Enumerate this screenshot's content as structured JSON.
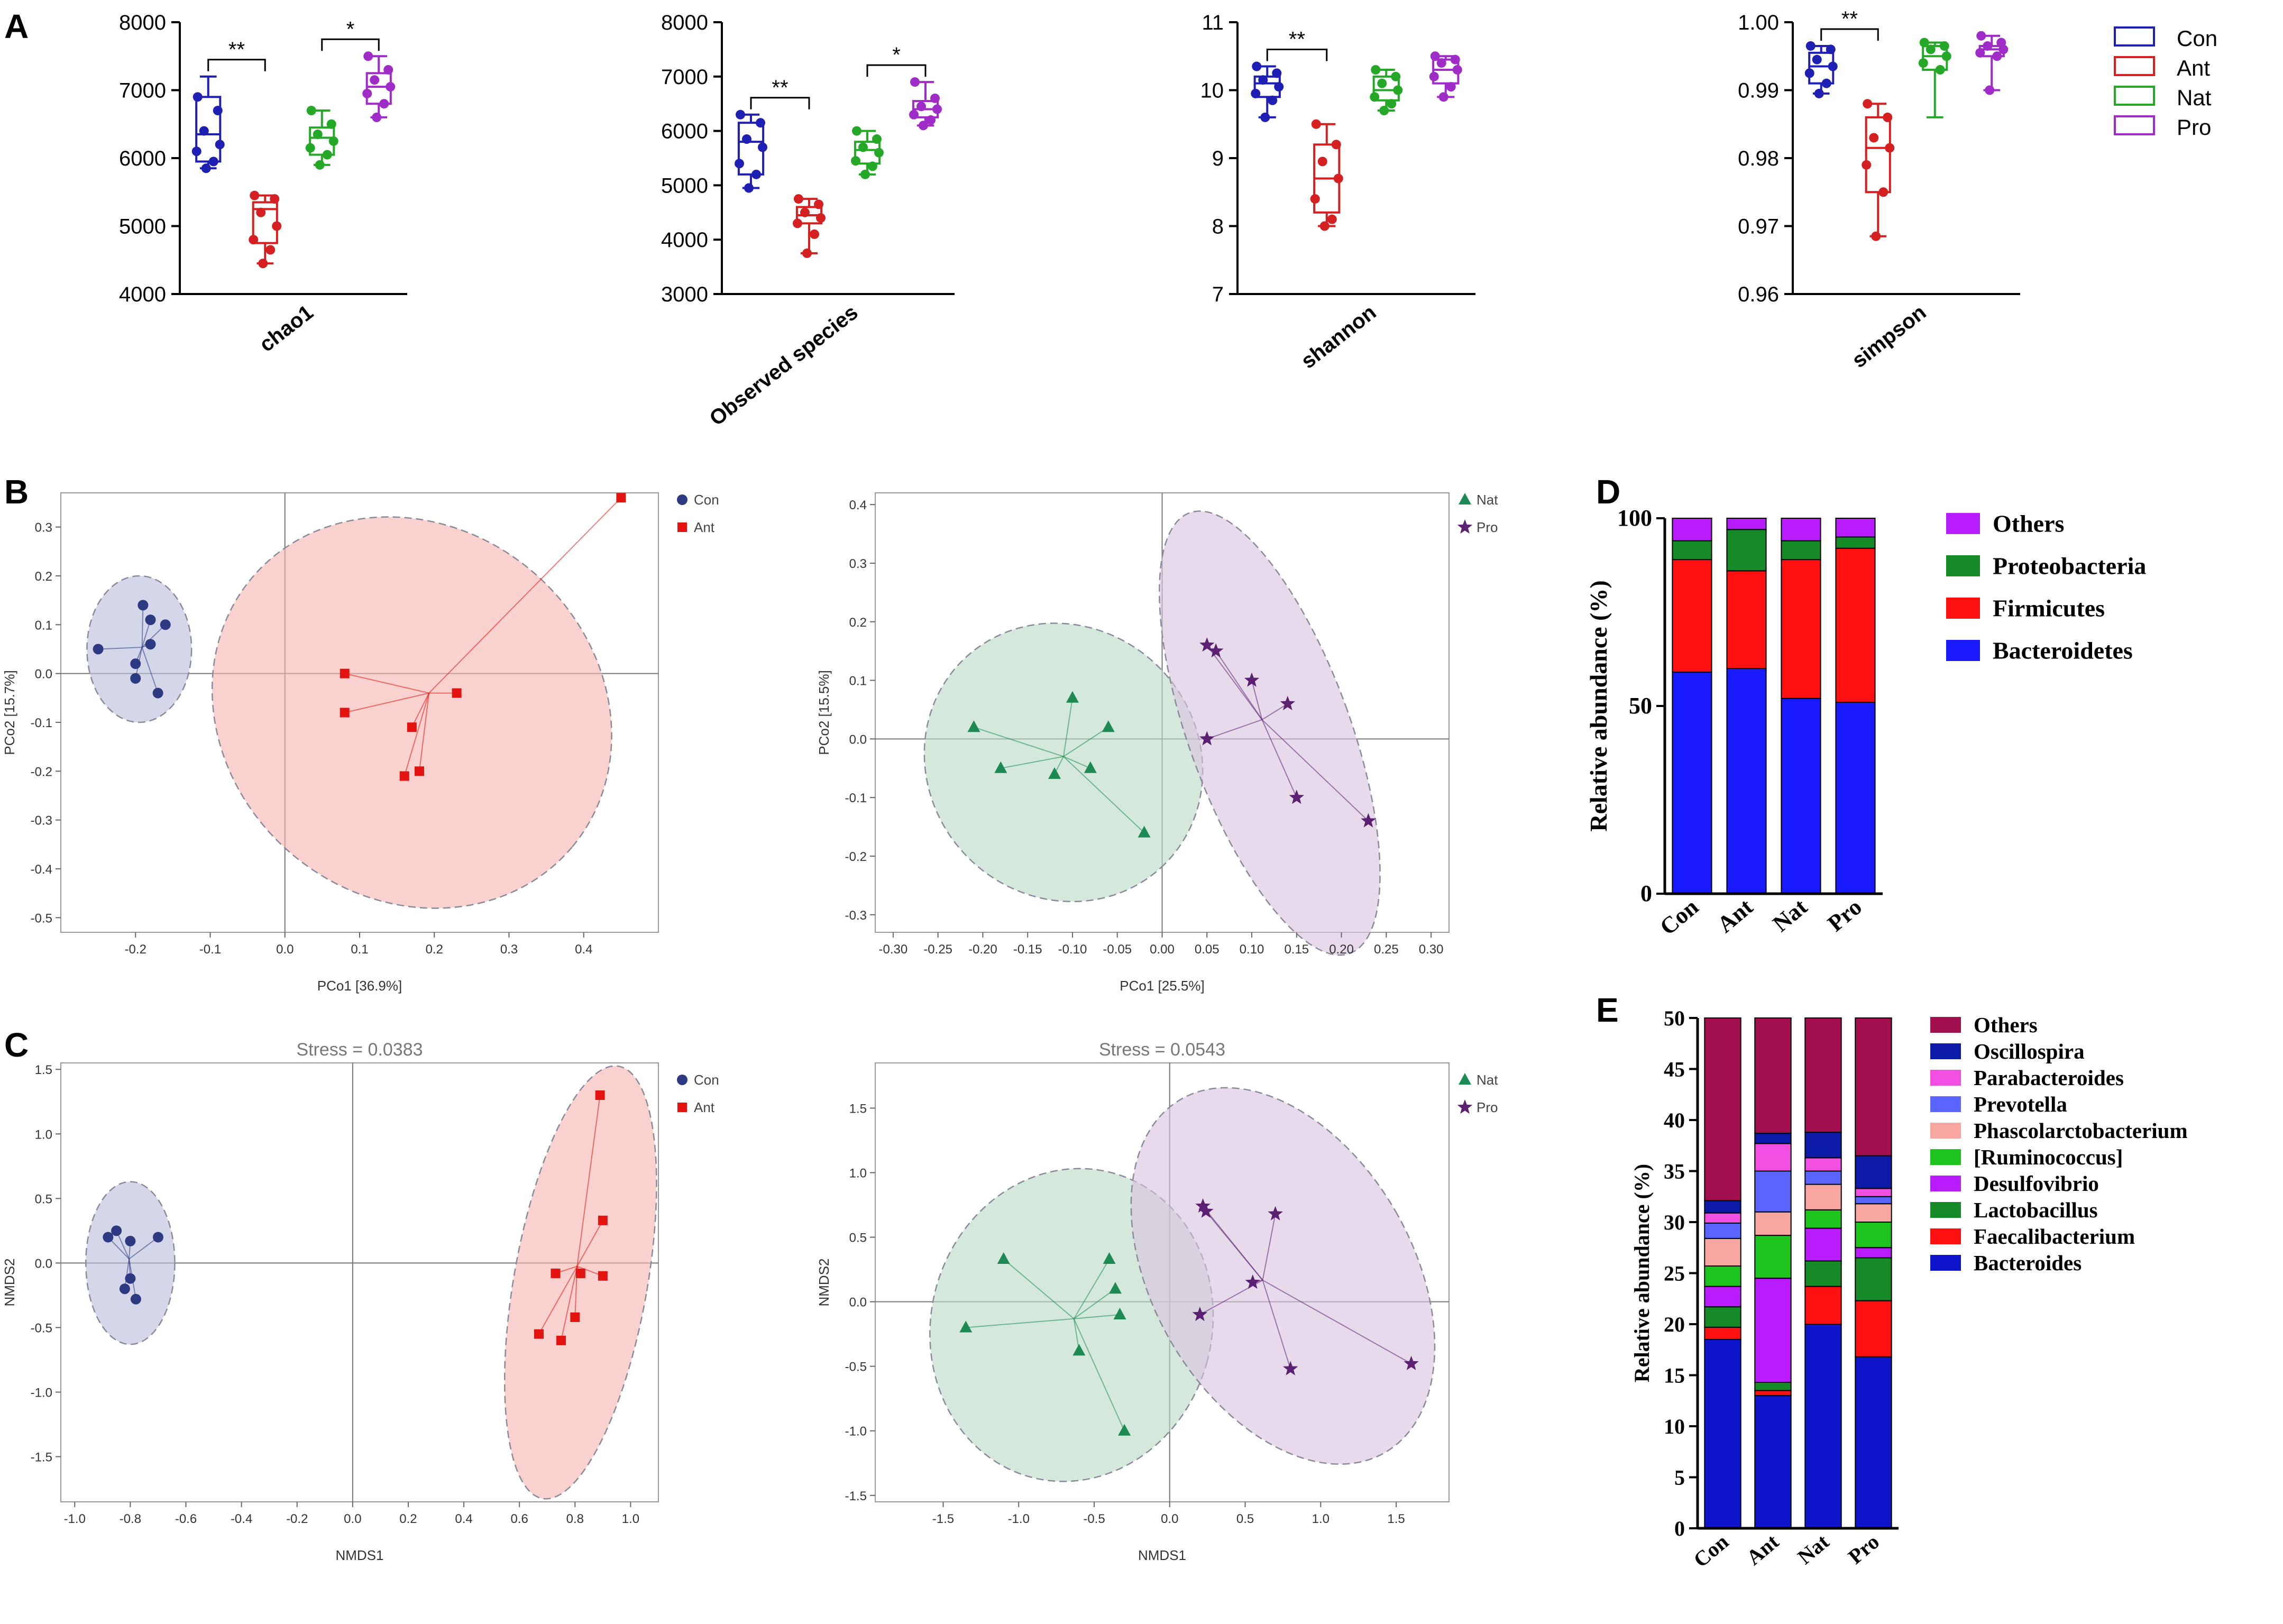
{
  "colors": {
    "con": "#1f1fb4",
    "ant": "#d42020",
    "nat": "#25a828",
    "pro": "#a02cc8",
    "con_ell": "#b9bfdc",
    "ant_ell": "#f6b5b0",
    "nat_ell": "#b9dcc6",
    "pro_ell": "#d8c3dd",
    "con_pt": "#2d3a82",
    "ant_pt": "#e3140f",
    "nat_pt": "#1c8a52",
    "pro_pt": "#5a2071"
  },
  "panel_labels": {
    "A": "A",
    "B": "B",
    "C": "C",
    "D": "D",
    "E": "E"
  },
  "legend_A": {
    "items": [
      "Con",
      "Ant",
      "Nat",
      "Pro"
    ]
  },
  "chart_data": [
    {
      "panel": "A",
      "type": "box",
      "xlabel": "chao1",
      "ylim": [
        4000,
        8000
      ],
      "yticks": [
        "4000",
        "5000",
        "6000",
        "7000",
        "8000"
      ],
      "groups": [
        {
          "name": "Con",
          "min": 5850,
          "q1": 5950,
          "median": 6350,
          "q3": 6900,
          "max": 7200,
          "points": [
            6900,
            6700,
            6400,
            6200,
            6100,
            5950,
            5850
          ]
        },
        {
          "name": "Ant",
          "min": 4450,
          "q1": 4750,
          "median": 5250,
          "q3": 5350,
          "max": 5450,
          "points": [
            5450,
            5400,
            5200,
            5000,
            4800,
            4650,
            4450
          ]
        },
        {
          "name": "Nat",
          "min": 5900,
          "q1": 6050,
          "median": 6300,
          "q3": 6450,
          "max": 6700,
          "points": [
            6700,
            6500,
            6350,
            6250,
            6150,
            6050,
            5900
          ]
        },
        {
          "name": "Pro",
          "min": 6600,
          "q1": 6800,
          "median": 7050,
          "q3": 7250,
          "max": 7500,
          "points": [
            7500,
            7300,
            7150,
            7050,
            6950,
            6800,
            6600
          ]
        }
      ],
      "significance": [
        {
          "pair": [
            0,
            1
          ],
          "label": "**"
        },
        {
          "pair": [
            2,
            3
          ],
          "label": "*"
        }
      ]
    },
    {
      "panel": "A",
      "type": "box",
      "xlabel": "Observed species",
      "ylim": [
        3000,
        8000
      ],
      "yticks": [
        "3000",
        "4000",
        "5000",
        "6000",
        "7000",
        "8000"
      ],
      "groups": [
        {
          "name": "Con",
          "min": 4950,
          "q1": 5200,
          "median": 5800,
          "q3": 6150,
          "max": 6300,
          "points": [
            6300,
            6150,
            5850,
            5700,
            5400,
            5200,
            4950
          ]
        },
        {
          "name": "Ant",
          "min": 3750,
          "q1": 4300,
          "median": 4450,
          "q3": 4600,
          "max": 4750,
          "points": [
            4750,
            4650,
            4500,
            4400,
            4300,
            4100,
            3750
          ]
        },
        {
          "name": "Nat",
          "min": 5200,
          "q1": 5400,
          "median": 5650,
          "q3": 5800,
          "max": 6000,
          "points": [
            6000,
            5850,
            5700,
            5600,
            5450,
            5350,
            5200
          ]
        },
        {
          "name": "Pro",
          "min": 6100,
          "q1": 6250,
          "median": 6400,
          "q3": 6550,
          "max": 6900,
          "points": [
            6900,
            6600,
            6450,
            6400,
            6300,
            6200,
            6100
          ]
        }
      ],
      "significance": [
        {
          "pair": [
            0,
            1
          ],
          "label": "**"
        },
        {
          "pair": [
            2,
            3
          ],
          "label": "*"
        }
      ]
    },
    {
      "panel": "A",
      "type": "box",
      "xlabel": "shannon",
      "ylim": [
        7,
        11
      ],
      "yticks": [
        "7",
        "8",
        "9",
        "10",
        "11"
      ],
      "groups": [
        {
          "name": "Con",
          "min": 9.6,
          "q1": 9.9,
          "median": 10.1,
          "q3": 10.2,
          "max": 10.35,
          "points": [
            10.35,
            10.25,
            10.15,
            10.05,
            9.95,
            9.85,
            9.6
          ]
        },
        {
          "name": "Ant",
          "min": 8.0,
          "q1": 8.2,
          "median": 8.7,
          "q3": 9.2,
          "max": 9.5,
          "points": [
            9.5,
            9.2,
            8.95,
            8.7,
            8.4,
            8.1,
            8.0
          ]
        },
        {
          "name": "Nat",
          "min": 9.7,
          "q1": 9.85,
          "median": 10.0,
          "q3": 10.2,
          "max": 10.3,
          "points": [
            10.3,
            10.2,
            10.1,
            10.0,
            9.9,
            9.8,
            9.7
          ]
        },
        {
          "name": "Pro",
          "min": 9.9,
          "q1": 10.1,
          "median": 10.3,
          "q3": 10.45,
          "max": 10.5,
          "points": [
            10.5,
            10.45,
            10.4,
            10.3,
            10.2,
            10.05,
            9.9
          ]
        }
      ],
      "significance": [
        {
          "pair": [
            0,
            1
          ],
          "label": "**"
        }
      ]
    },
    {
      "panel": "A",
      "type": "box",
      "xlabel": "simpson",
      "ylim": [
        0.96,
        1.0
      ],
      "yticks": [
        "0.96",
        "0.97",
        "0.98",
        "0.99",
        "1.00"
      ],
      "groups": [
        {
          "name": "Con",
          "min": 0.9895,
          "q1": 0.991,
          "median": 0.9935,
          "q3": 0.9955,
          "max": 0.9965,
          "points": [
            0.9965,
            0.996,
            0.9945,
            0.9935,
            0.9925,
            0.991,
            0.9895
          ]
        },
        {
          "name": "Ant",
          "min": 0.9685,
          "q1": 0.975,
          "median": 0.9815,
          "q3": 0.986,
          "max": 0.988,
          "points": [
            0.988,
            0.986,
            0.983,
            0.9815,
            0.979,
            0.975,
            0.9685
          ]
        },
        {
          "name": "Nat",
          "min": 0.986,
          "q1": 0.993,
          "median": 0.995,
          "q3": 0.9965,
          "max": 0.997,
          "points": [
            0.997,
            0.9965,
            0.996,
            0.995,
            0.994,
            0.993
          ]
        },
        {
          "name": "Pro",
          "min": 0.99,
          "q1": 0.995,
          "median": 0.996,
          "q3": 0.9965,
          "max": 0.998,
          "points": [
            0.998,
            0.997,
            0.9965,
            0.996,
            0.9955,
            0.995,
            0.99
          ]
        }
      ],
      "significance": [
        {
          "pair": [
            0,
            1
          ],
          "label": "**"
        }
      ]
    },
    {
      "panel": "B",
      "type": "scatter",
      "subtype": "PCoA",
      "xlabel": "PCo1 [36.9%]",
      "ylabel": "PCo2 [15.7%]",
      "xlim": [
        -0.3,
        0.5
      ],
      "ylim": [
        -0.53,
        0.37
      ],
      "xticks": [
        "-0.2",
        "-0.1",
        "0.0",
        "0.1",
        "0.2",
        "0.3",
        "0.4"
      ],
      "yticks": [
        "-0.5",
        "-0.4",
        "-0.3",
        "-0.2",
        "-0.1",
        "0.0",
        "0.1",
        "0.2",
        "0.3"
      ],
      "legend": [
        "Con",
        "Ant"
      ],
      "series": [
        {
          "name": "Con",
          "marker": "circle",
          "x": [
            -0.25,
            -0.19,
            -0.18,
            -0.2,
            -0.2,
            -0.17,
            -0.16,
            -0.18
          ],
          "y": [
            0.05,
            0.14,
            0.06,
            0.02,
            -0.01,
            -0.04,
            0.1,
            0.11
          ]
        },
        {
          "name": "Ant",
          "marker": "square",
          "x": [
            0.08,
            0.08,
            0.17,
            0.23,
            0.16,
            0.18,
            0.45
          ],
          "y": [
            0.0,
            -0.08,
            -0.11,
            -0.04,
            -0.21,
            -0.2,
            0.36
          ]
        }
      ]
    },
    {
      "panel": "B",
      "type": "scatter",
      "subtype": "PCoA",
      "xlabel": "PCo1 [25.5%]",
      "ylabel": "PCo2 [15.5%]",
      "xlim": [
        -0.32,
        0.32
      ],
      "ylim": [
        -0.33,
        0.42
      ],
      "xticks": [
        "-0.30",
        "-0.25",
        "-0.20",
        "-0.15",
        "-0.10",
        "-0.05",
        "0.00",
        "0.05",
        "0.10",
        "0.15",
        "0.20",
        "0.25",
        "0.30"
      ],
      "yticks": [
        "-0.3",
        "-0.2",
        "-0.1",
        "0.0",
        "0.1",
        "0.2",
        "0.3",
        "0.4"
      ],
      "legend": [
        "Nat",
        "Pro"
      ],
      "series": [
        {
          "name": "Nat",
          "marker": "triangle",
          "x": [
            -0.21,
            -0.18,
            -0.12,
            -0.1,
            -0.08,
            -0.06,
            -0.02
          ],
          "y": [
            0.02,
            -0.05,
            -0.06,
            0.07,
            -0.05,
            0.02,
            -0.16
          ]
        },
        {
          "name": "Pro",
          "marker": "star",
          "x": [
            0.05,
            0.06,
            0.05,
            0.1,
            0.14,
            0.15,
            0.23
          ],
          "y": [
            0.16,
            0.15,
            0.0,
            0.1,
            0.06,
            -0.1,
            -0.14
          ]
        }
      ]
    },
    {
      "panel": "C",
      "type": "scatter",
      "subtype": "NMDS",
      "stress": "Stress = 0.0383",
      "xlabel": "NMDS1",
      "ylabel": "NMDS2",
      "xlim": [
        -1.05,
        1.1
      ],
      "ylim": [
        -1.85,
        1.55
      ],
      "xticks": [
        "-1.0",
        "-0.8",
        "-0.6",
        "-0.4",
        "-0.2",
        "0.0",
        "0.2",
        "0.4",
        "0.6",
        "0.8",
        "1.0"
      ],
      "yticks": [
        "-1.5",
        "-1.0",
        "-0.5",
        "0.0",
        "0.5",
        "1.0",
        "1.5"
      ],
      "legend": [
        "Con",
        "Ant"
      ],
      "series": [
        {
          "name": "Con",
          "marker": "circle",
          "x": [
            -0.88,
            -0.85,
            -0.8,
            -0.8,
            -0.78,
            -0.7,
            -0.82
          ],
          "y": [
            0.2,
            0.25,
            0.17,
            -0.12,
            -0.28,
            0.2,
            -0.2
          ]
        },
        {
          "name": "Ant",
          "marker": "square",
          "x": [
            0.67,
            0.75,
            0.8,
            0.82,
            0.73,
            0.9,
            0.9,
            0.89
          ],
          "y": [
            -0.55,
            -0.6,
            -0.42,
            -0.08,
            -0.08,
            -0.1,
            0.33,
            1.3
          ]
        }
      ]
    },
    {
      "panel": "C",
      "type": "scatter",
      "subtype": "NMDS",
      "stress": "Stress = 0.0543",
      "xlabel": "NMDS1",
      "ylabel": "NMDS2",
      "xlim": [
        -1.95,
        1.85
      ],
      "ylim": [
        -1.55,
        1.85
      ],
      "xticks": [
        "-1.5",
        "-1.0",
        "-0.5",
        "0.0",
        "0.5",
        "1.0",
        "1.5"
      ],
      "yticks": [
        "-1.5",
        "-1.0",
        "-0.5",
        "0.0",
        "0.5",
        "1.0",
        "1.5"
      ],
      "legend": [
        "Nat",
        "Pro"
      ],
      "series": [
        {
          "name": "Nat",
          "marker": "triangle",
          "x": [
            -1.35,
            -1.1,
            -0.6,
            -0.4,
            -0.36,
            -0.33,
            -0.3
          ],
          "y": [
            -0.2,
            0.33,
            -0.38,
            0.33,
            0.1,
            -0.1,
            -1.0
          ]
        },
        {
          "name": "Pro",
          "marker": "star",
          "x": [
            0.22,
            0.24,
            0.2,
            0.55,
            0.7,
            0.8,
            1.6
          ],
          "y": [
            0.74,
            0.7,
            -0.1,
            0.15,
            0.68,
            -0.52,
            -0.48
          ]
        }
      ]
    },
    {
      "panel": "D",
      "type": "bar",
      "stacked": true,
      "categories": [
        "Con",
        "Ant",
        "Nat",
        "Pro"
      ],
      "ylabel": "Relative abundance (%)",
      "ylim": [
        0,
        100
      ],
      "yticks": [
        "0",
        "50",
        "100"
      ],
      "series": [
        {
          "name": "Bacteroidetes",
          "color": "#1a1aff",
          "values": [
            59,
            60,
            52,
            51
          ]
        },
        {
          "name": "Firmicutes",
          "color": "#ff1010",
          "values": [
            30,
            26,
            37,
            41
          ]
        },
        {
          "name": "Proteobacteria",
          "color": "#168a26",
          "values": [
            5,
            11,
            5,
            3
          ]
        },
        {
          "name": "Others",
          "color": "#b81cff",
          "values": [
            6,
            3,
            6,
            5
          ]
        }
      ],
      "legend": [
        "Others",
        "Proteobacteria",
        "Firmicutes",
        "Bacteroidetes"
      ]
    },
    {
      "panel": "E",
      "type": "bar",
      "stacked": true,
      "categories": [
        "Con",
        "Ant",
        "Nat",
        "Pro"
      ],
      "ylabel": "Relative abundance (%)",
      "ylim": [
        0,
        50
      ],
      "yticks": [
        "0",
        "5",
        "10",
        "15",
        "20",
        "25",
        "30",
        "35",
        "40",
        "45",
        "50"
      ],
      "series": [
        {
          "name": "Bacteroides",
          "color": "#0d14c9",
          "values": [
            18.5,
            13.0,
            20.0,
            16.8
          ]
        },
        {
          "name": "Faecalibacterium",
          "color": "#ff1010",
          "values": [
            1.2,
            0.5,
            3.7,
            5.5
          ]
        },
        {
          "name": "Lactobacillus",
          "color": "#168a26",
          "values": [
            2.0,
            0.8,
            2.5,
            4.2
          ]
        },
        {
          "name": "Desulfovibrio",
          "color": "#b81cff",
          "values": [
            2.0,
            10.2,
            3.2,
            1.0
          ]
        },
        {
          "name": "[Ruminococcus]",
          "color": "#1ec41e",
          "values": [
            2.0,
            4.2,
            1.8,
            2.5
          ]
        },
        {
          "name": "Phascolarctobacterium",
          "color": "#f7a7a0",
          "values": [
            2.7,
            2.3,
            2.5,
            1.8
          ]
        },
        {
          "name": "Prevotella",
          "color": "#5a66ff",
          "values": [
            1.5,
            4.0,
            1.3,
            0.7
          ]
        },
        {
          "name": "Parabacteroides",
          "color": "#f24fe2",
          "values": [
            1.0,
            2.7,
            1.3,
            0.8
          ]
        },
        {
          "name": "Oscillospira",
          "color": "#0b1aa7",
          "values": [
            1.2,
            1.0,
            2.5,
            3.2
          ]
        },
        {
          "name": "Others",
          "color": "#a3104f",
          "values": [
            17.9,
            11.3,
            11.2,
            13.5
          ]
        }
      ],
      "legend": [
        "Others",
        "Oscillospira",
        "Parabacteroides",
        "Prevotella",
        "Phascolarctobacterium",
        "[Ruminococcus]",
        "Desulfovibrio",
        "Lactobacillus",
        "Faecalibacterium",
        "Bacteroides"
      ]
    }
  ]
}
